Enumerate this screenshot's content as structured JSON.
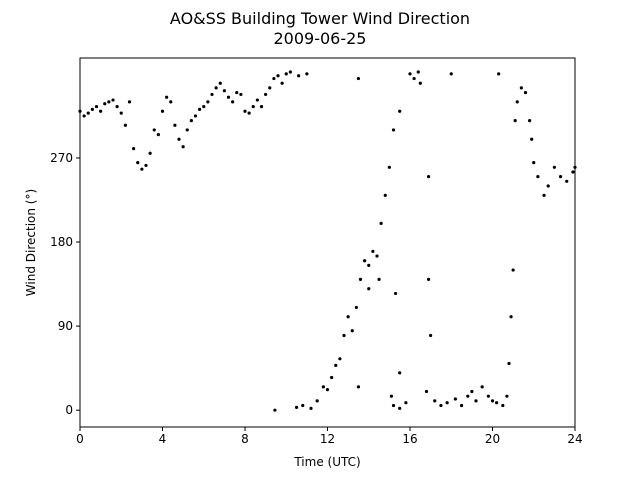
{
  "chart_data": {
    "type": "scatter",
    "title": "AO&SS Building Tower Wind Direction",
    "subtitle": "2009-06-25",
    "xlabel": "Time (UTC)",
    "ylabel": "Wind Direction (°)",
    "color": "#000000",
    "xlim": [
      0,
      24
    ],
    "xticks": [
      0,
      4,
      8,
      12,
      16,
      20,
      24
    ],
    "ylim": [
      -18,
      377
    ],
    "yticks": [
      0,
      90,
      180,
      270
    ],
    "x": [
      0.0,
      0.2,
      0.4,
      0.6,
      0.8,
      1.0,
      1.2,
      1.4,
      1.6,
      1.8,
      2.0,
      2.2,
      2.4,
      2.6,
      2.8,
      3.0,
      3.2,
      3.4,
      3.6,
      3.8,
      4.0,
      4.2,
      4.4,
      4.6,
      4.8,
      5.0,
      5.2,
      5.4,
      5.6,
      5.8,
      6.0,
      6.2,
      6.4,
      6.6,
      6.8,
      7.0,
      7.2,
      7.4,
      7.6,
      7.8,
      8.0,
      8.2,
      8.4,
      8.6,
      8.8,
      9.0,
      9.2,
      9.4,
      9.6,
      9.8,
      10.0,
      10.2,
      10.6,
      11.0,
      13.5,
      9.45,
      10.5,
      10.8,
      11.2,
      11.5,
      11.8,
      12.0,
      12.2,
      12.4,
      12.6,
      12.8,
      13.0,
      13.2,
      13.4,
      13.6,
      13.8,
      14.0,
      14.2,
      14.4,
      14.6,
      14.8,
      15.0,
      15.2,
      15.5,
      13.5,
      14.0,
      14.5,
      15.3,
      15.5,
      15.1,
      15.2,
      15.5,
      15.8,
      16.0,
      16.2,
      16.4,
      16.5,
      16.8,
      16.9,
      16.9,
      17.0,
      17.2,
      17.5,
      17.8,
      18.0,
      18.2,
      18.5,
      18.8,
      19.0,
      19.2,
      19.5,
      19.8,
      20.0,
      20.2,
      20.3,
      20.5,
      20.7,
      20.8,
      20.9,
      21.0,
      21.1,
      21.2,
      21.4,
      21.6,
      21.8,
      21.9,
      22.0,
      22.2,
      22.5,
      22.7,
      23.0,
      23.3,
      23.6,
      23.9,
      24.0
    ],
    "values": [
      320,
      315,
      318,
      322,
      325,
      320,
      328,
      330,
      332,
      325,
      318,
      305,
      330,
      280,
      265,
      258,
      262,
      275,
      300,
      295,
      320,
      335,
      330,
      305,
      290,
      282,
      300,
      310,
      315,
      322,
      325,
      330,
      338,
      345,
      350,
      342,
      335,
      330,
      340,
      338,
      320,
      318,
      325,
      332,
      325,
      338,
      345,
      355,
      358,
      350,
      360,
      362,
      358,
      360,
      355,
      0,
      3,
      5,
      2,
      10,
      25,
      22,
      35,
      48,
      55,
      80,
      100,
      85,
      110,
      140,
      160,
      155,
      170,
      165,
      200,
      230,
      260,
      300,
      320,
      25,
      130,
      140,
      125,
      40,
      15,
      5,
      2,
      8,
      360,
      355,
      362,
      350,
      20,
      250,
      140,
      80,
      10,
      5,
      8,
      360,
      12,
      5,
      15,
      20,
      10,
      25,
      15,
      10,
      8,
      360,
      5,
      15,
      50,
      100,
      150,
      310,
      330,
      345,
      340,
      310,
      290,
      265,
      250,
      230,
      240,
      260,
      250,
      245,
      255,
      260
    ]
  }
}
